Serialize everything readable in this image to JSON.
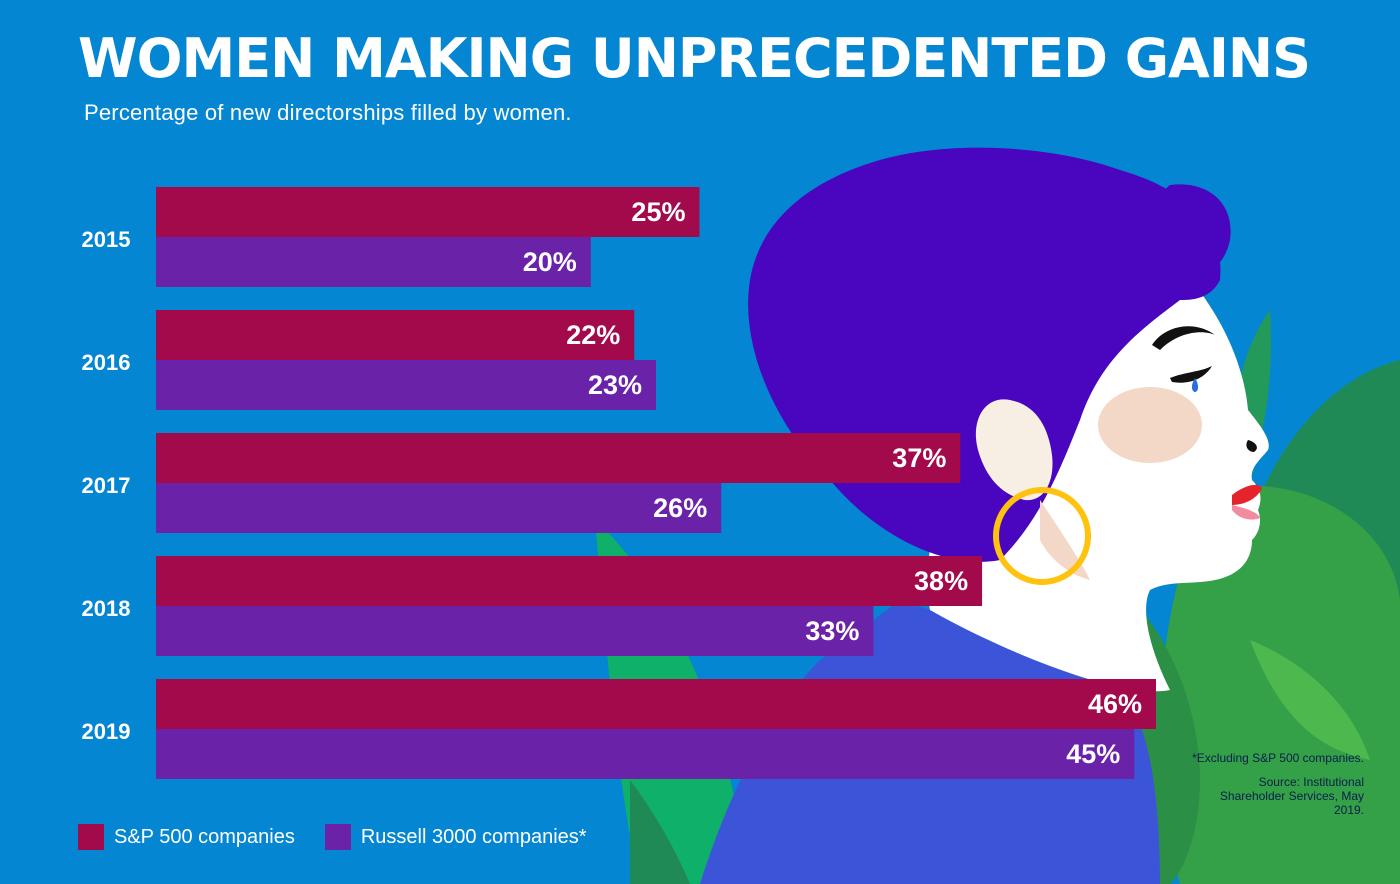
{
  "header": {
    "title": "WOMEN MAKING UNPRECEDENTED GAINS",
    "subtitle": "Percentage of new directorships filled by women."
  },
  "chart_data": {
    "type": "bar",
    "orientation": "horizontal",
    "title": "WOMEN MAKING UNPRECEDENTED GAINS",
    "subtitle": "Percentage of new directorships filled by women.",
    "categories": [
      "2015",
      "2016",
      "2017",
      "2018",
      "2019"
    ],
    "series": [
      {
        "name": "S&P 500 companies",
        "color": "#a20a4b",
        "values": [
          25,
          22,
          37,
          38,
          46
        ],
        "labels": [
          "25%",
          "22%",
          "37%",
          "38%",
          "46%"
        ]
      },
      {
        "name": "Russell 3000 companies*",
        "color": "#6a22a8",
        "values": [
          20,
          23,
          26,
          33,
          45
        ],
        "labels": [
          "20%",
          "23%",
          "26%",
          "33%",
          "45%"
        ]
      }
    ],
    "unit": "%",
    "xlim": [
      0,
      46
    ],
    "grid": false,
    "legend_position": "bottom-left"
  },
  "legend": {
    "sp500": "S&P 500 companies",
    "russell": "Russell 3000 companies*"
  },
  "notes": {
    "exclusion": "*Excluding S&P 500 companies.",
    "source": "Source: Institutional Shareholder Services, May 2019."
  },
  "colors": {
    "background": "#0586d2",
    "sp500": "#a20a4b",
    "russell": "#6a22a8",
    "hair": "#4a05be",
    "leaf_dark": "#1f8a55",
    "leaf_light": "#0fb06a",
    "blouse": "#3c55d8",
    "earring": "#ffc20e",
    "cheek": "#f3d7c7",
    "lips": "#e5232b"
  },
  "illustration": {
    "subject": "woman-profile-with-leaves"
  }
}
